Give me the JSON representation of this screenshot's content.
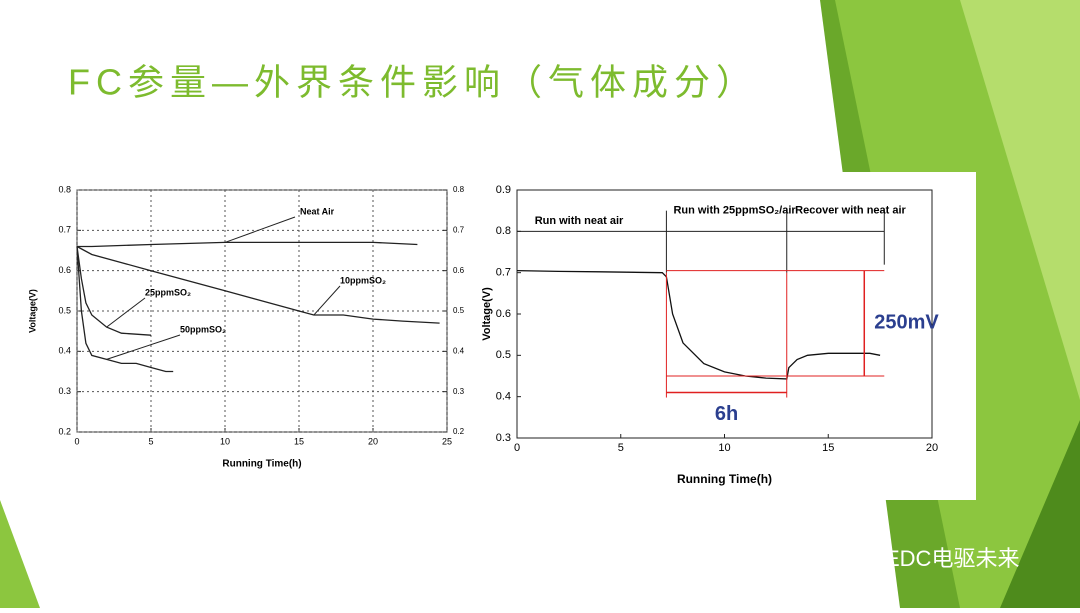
{
  "slide_title": "FC参量—外界条件影响（气体成分）",
  "watermark": "EDC电驱未来",
  "chart_data": [
    {
      "type": "line",
      "xlabel": "Running Time(h)",
      "ylabel": "Voltage(V)",
      "xlim": [
        0,
        25
      ],
      "xticks": [
        0,
        5,
        10,
        15,
        20,
        25
      ],
      "ylim": [
        0.2,
        0.8
      ],
      "yticks": [
        0.2,
        0.3,
        0.4,
        0.5,
        0.6,
        0.7,
        0.8
      ],
      "y2lim": [
        0.2,
        0.8
      ],
      "y2ticks": [
        0.2,
        0.3,
        0.4,
        0.5,
        0.6,
        0.7,
        0.8
      ],
      "grid": true,
      "series": [
        {
          "name": "Neat Air",
          "color": "#222222",
          "x": [
            0,
            1,
            5,
            10,
            15,
            20,
            23
          ],
          "values": [
            0.66,
            0.66,
            0.665,
            0.67,
            0.67,
            0.67,
            0.665
          ]
        },
        {
          "name": "10ppmSO₂",
          "color": "#222222",
          "x": [
            0,
            1,
            3,
            5,
            8,
            10,
            12,
            15,
            16,
            18,
            20,
            22,
            24.5
          ],
          "values": [
            0.66,
            0.64,
            0.62,
            0.6,
            0.57,
            0.55,
            0.53,
            0.5,
            0.49,
            0.49,
            0.48,
            0.475,
            0.47
          ]
        },
        {
          "name": "25ppmSO₂",
          "color": "#222222",
          "x": [
            0,
            0.3,
            0.6,
            1,
            2,
            3,
            5
          ],
          "values": [
            0.66,
            0.58,
            0.52,
            0.49,
            0.46,
            0.445,
            0.44
          ]
        },
        {
          "name": "50ppmSO₂",
          "color": "#222222",
          "x": [
            0,
            0.3,
            0.6,
            1,
            2,
            3,
            4,
            5,
            6,
            6.5
          ],
          "values": [
            0.66,
            0.5,
            0.42,
            0.39,
            0.38,
            0.37,
            0.37,
            0.36,
            0.35,
            0.35
          ]
        }
      ]
    },
    {
      "type": "line",
      "xlabel": "Running Time(h)",
      "ylabel": "Voltage(V)",
      "xlim": [
        0,
        20
      ],
      "xticks": [
        0,
        5,
        10,
        15,
        20
      ],
      "ylim": [
        0.3,
        0.9
      ],
      "yticks": [
        0.3,
        0.4,
        0.5,
        0.6,
        0.7,
        0.8,
        0.9
      ],
      "grid": false,
      "phases": [
        "Run with neat air",
        "Run with 25ppmSO₂/air",
        "Recover with neat air"
      ],
      "phase_bounds": [
        0,
        7.2,
        13,
        17.7
      ],
      "drop_label": "250mV",
      "drop": [
        0.705,
        0.45
      ],
      "duration_label": "6h",
      "duration": [
        7.2,
        13
      ],
      "series": [
        {
          "name": "Voltage",
          "color": "#111111",
          "x": [
            0,
            2,
            4,
            7,
            7.2,
            7.5,
            8,
            9,
            10,
            11,
            12,
            13,
            13.1,
            13.5,
            14,
            15,
            17,
            17.5
          ],
          "values": [
            0.705,
            0.703,
            0.702,
            0.7,
            0.69,
            0.6,
            0.53,
            0.48,
            0.46,
            0.45,
            0.445,
            0.443,
            0.47,
            0.49,
            0.5,
            0.505,
            0.505,
            0.5
          ]
        }
      ]
    }
  ]
}
